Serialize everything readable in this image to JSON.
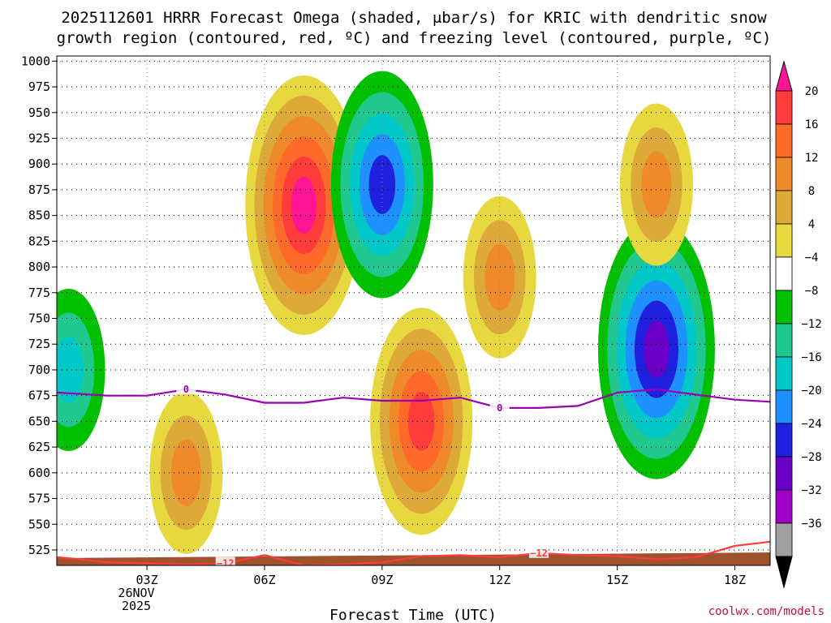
{
  "chart_data": {
    "type": "contour",
    "title_line1": "2025112601 HRRR Forecast Omega (shaded, μbar/s) for KRIC with dendritic snow",
    "title_line2": "growth region (contoured, red, ºC) and freezing level (contoured, purple, ºC)",
    "xlabel": "Forecast Time (UTC)",
    "credit": "coolwx.com/models",
    "date_label_day": "26NOV",
    "date_label_year": "2025",
    "x_range": [
      0.7,
      18.9
    ],
    "x_ticks": [
      {
        "hour": 3,
        "label": "03Z"
      },
      {
        "hour": 6,
        "label": "06Z"
      },
      {
        "hour": 9,
        "label": "09Z"
      },
      {
        "hour": 12,
        "label": "12Z"
      },
      {
        "hour": 15,
        "label": "15Z"
      },
      {
        "hour": 18,
        "label": "18Z"
      }
    ],
    "y_range": [
      1005,
      510
    ],
    "y_ticks": [
      {
        "p": 525,
        "label": "525"
      },
      {
        "p": 550,
        "label": "550"
      },
      {
        "p": 575,
        "label": "575"
      },
      {
        "p": 600,
        "label": "600"
      },
      {
        "p": 625,
        "label": "625"
      },
      {
        "p": 650,
        "label": "650"
      },
      {
        "p": 675,
        "label": "675"
      },
      {
        "p": 700,
        "label": "700"
      },
      {
        "p": 725,
        "label": "725"
      },
      {
        "p": 750,
        "label": "750"
      },
      {
        "p": 775,
        "label": "775"
      },
      {
        "p": 800,
        "label": "800"
      },
      {
        "p": 825,
        "label": "825"
      },
      {
        "p": 850,
        "label": "850"
      },
      {
        "p": 875,
        "label": "875"
      },
      {
        "p": 900,
        "label": "900"
      },
      {
        "p": 925,
        "label": "925"
      },
      {
        "p": 950,
        "label": "950"
      },
      {
        "p": 975,
        "label": "975"
      },
      {
        "p": 1000,
        "label": "1000"
      }
    ],
    "colorbar": {
      "colors": [
        "#ff1493",
        "#ff3b3b",
        "#ff6a2a",
        "#ee8a2a",
        "#ddaa3a",
        "#e8d840",
        "#ffffff",
        "#00c000",
        "#20c890",
        "#00c8c8",
        "#1e90ff",
        "#2020e0",
        "#6a00c8",
        "#a000c8",
        "#a0a0a0",
        "#000000"
      ],
      "labels": [
        "20",
        "16",
        "12",
        "8",
        "4",
        "−4",
        "−8",
        "−12",
        "−16",
        "−20",
        "−24",
        "−28",
        "−32",
        "−36"
      ]
    },
    "cells": [
      {
        "h": 1.0,
        "p": 700,
        "v": -12
      },
      {
        "h": 4.0,
        "p": 600,
        "v": 10
      },
      {
        "h": 7.0,
        "p": 860,
        "v": 20
      },
      {
        "h": 9.0,
        "p": 880,
        "v": -22
      },
      {
        "h": 10.0,
        "p": 650,
        "v": 16
      },
      {
        "h": 12.0,
        "p": 790,
        "v": 8
      },
      {
        "h": 16.0,
        "p": 720,
        "v": -26
      },
      {
        "h": 16.0,
        "p": 880,
        "v": 10
      }
    ],
    "dgz_line": {
      "label": "−12",
      "color": "#ff3b3b",
      "h": [
        0.7,
        1,
        2,
        3,
        4,
        5,
        6,
        7,
        8,
        9,
        10,
        11,
        12,
        13,
        14,
        15,
        16,
        17,
        18,
        18.9
      ],
      "p": [
        518,
        517,
        513,
        512,
        511,
        512,
        520,
        510,
        511,
        513,
        519,
        520,
        518,
        522,
        520,
        519,
        516,
        518,
        529,
        533
      ]
    },
    "freezing_line": {
      "label": "0",
      "color": "#9b00b4",
      "h": [
        0.7,
        2,
        3,
        4,
        5,
        6,
        7,
        8,
        9,
        10,
        11,
        12,
        13,
        14,
        15,
        16,
        17,
        18,
        18.9
      ],
      "p": [
        678,
        675,
        675,
        681,
        676,
        668,
        668,
        673,
        670,
        670,
        673,
        663,
        663,
        665,
        678,
        681,
        676,
        671,
        669
      ]
    }
  }
}
